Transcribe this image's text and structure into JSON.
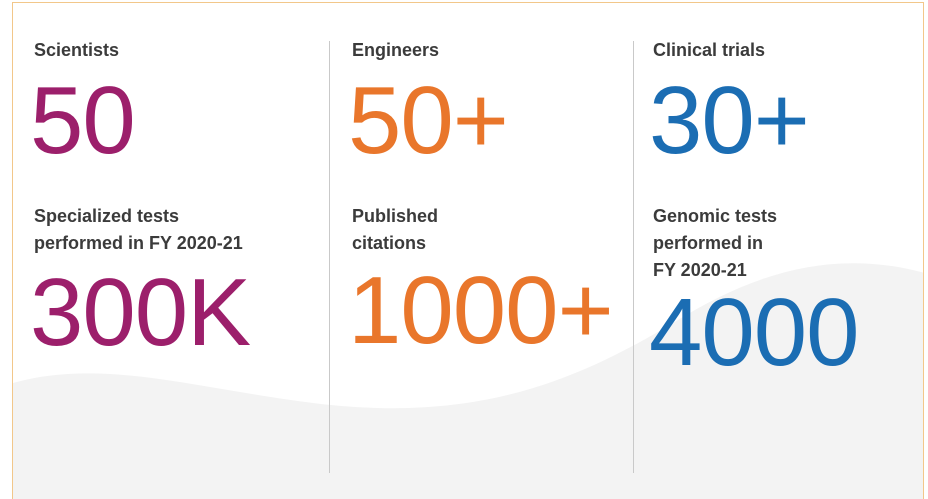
{
  "columns": [
    {
      "color": "#9c1f6b",
      "stats": [
        {
          "label": [
            "Scientists"
          ],
          "value": "50"
        },
        {
          "label": [
            "Specialized tests",
            "performed in FY 2020-21"
          ],
          "value": "300K"
        }
      ]
    },
    {
      "color": "#e9762b",
      "stats": [
        {
          "label": [
            "Engineers"
          ],
          "value": "50+"
        },
        {
          "label": [
            "Published",
            "citations"
          ],
          "value": "1000+"
        }
      ]
    },
    {
      "color": "#1b6db3",
      "stats": [
        {
          "label": [
            "Clinical trials"
          ],
          "value": "30+"
        },
        {
          "label": [
            "Genomic tests",
            "performed in",
            "FY 2020-21"
          ],
          "value": "4000"
        }
      ]
    }
  ]
}
